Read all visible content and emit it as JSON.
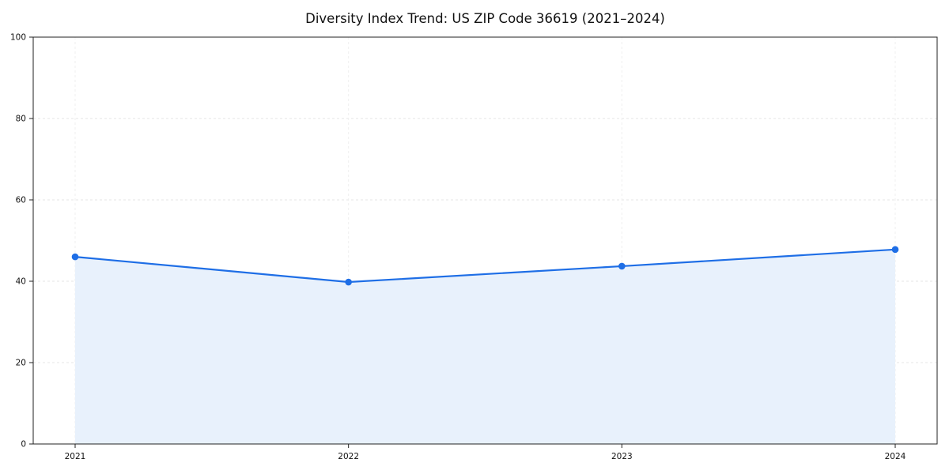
{
  "chart_data": {
    "type": "area",
    "title": "Diversity Index Trend: US ZIP Code 36619 (2021–2024)",
    "categories": [
      "2021",
      "2022",
      "2023",
      "2024"
    ],
    "series": [
      {
        "name": "Diversity Index",
        "values": [
          46.0,
          39.8,
          43.7,
          47.8
        ]
      }
    ],
    "xlabel": "",
    "ylabel": "",
    "ylim": [
      0,
      100
    ],
    "yticks": [
      0,
      20,
      40,
      60,
      80,
      100
    ],
    "grid": true,
    "grid_style": "dashed",
    "legend": "none",
    "line_color": "#1e6ee6",
    "fill_color": "#e8f1fc",
    "marker": "circle",
    "axis_color": "#222222",
    "gridline_color": "#e4e4e4",
    "tick_label_color": "#111111"
  }
}
